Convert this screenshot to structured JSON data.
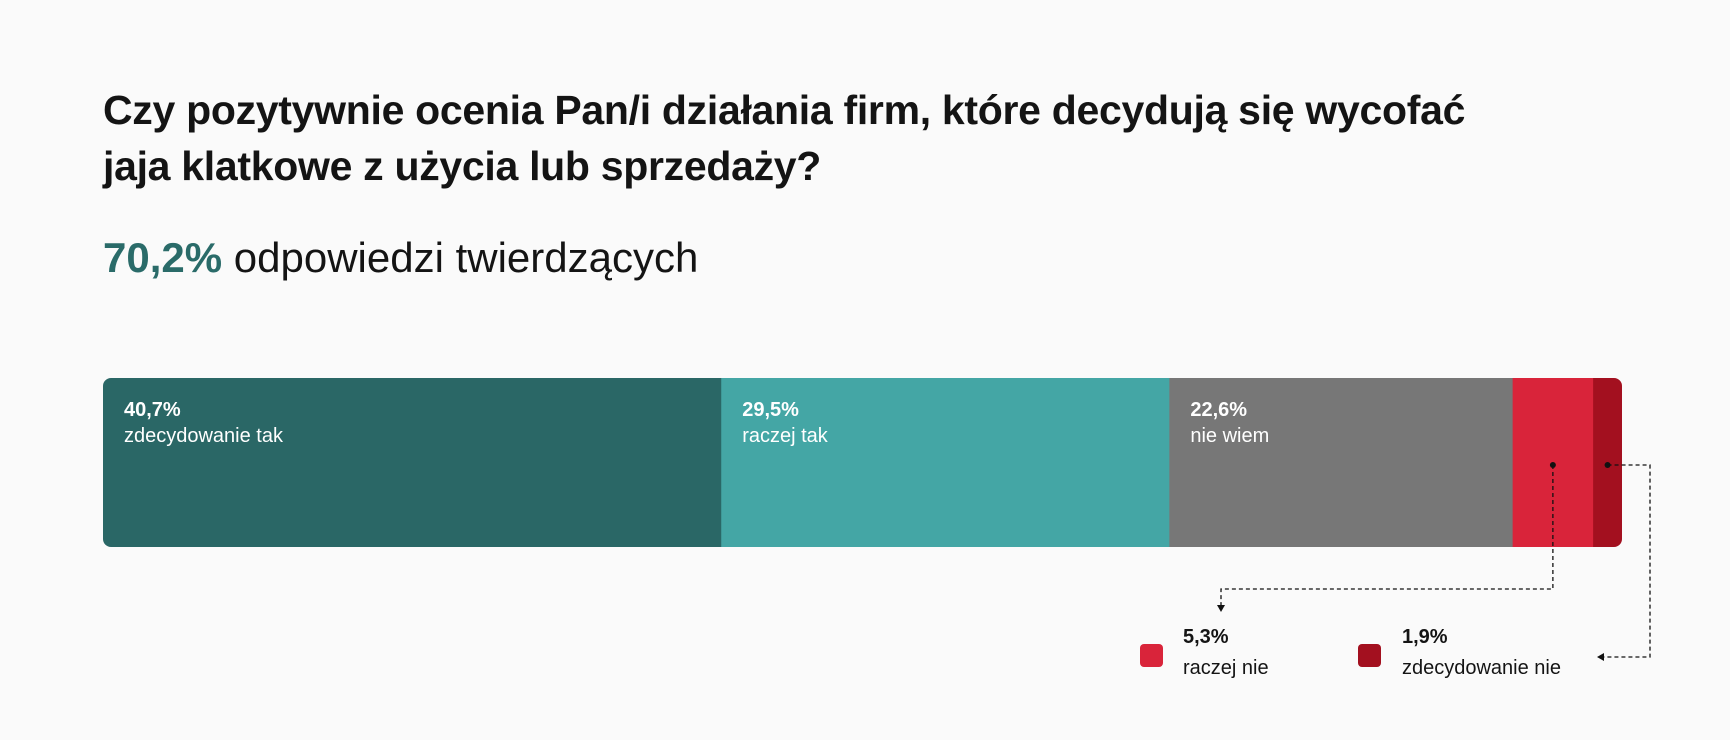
{
  "chart_data": {
    "type": "bar",
    "orientation": "horizontal-stacked",
    "title": "Czy pozytywnie ocenia Pan/i działania firm, które decydują się wycofać jaja klatkowe z użycia lub sprzedaży?",
    "title_lines": [
      "Czy pozytywnie ocenia Pan/i działania firm, które decydują się wycofać",
      "jaja klatkowe z użycia lub sprzedaży?"
    ],
    "subtitle": {
      "value": "70,2%",
      "text": "odpowiedzi twierdzących"
    },
    "series": [
      {
        "name": "zdecydowanie tak",
        "value": 40.7,
        "label": "40,7%",
        "color": "#2a6766",
        "label_position": "inside"
      },
      {
        "name": "raczej tak",
        "value": 29.5,
        "label": "29,5%",
        "color": "#44a6a5",
        "label_position": "inside"
      },
      {
        "name": "nie wiem",
        "value": 22.6,
        "label": "22,6%",
        "color": "#777777",
        "label_position": "inside"
      },
      {
        "name": "raczej nie",
        "value": 5.3,
        "label": "5,3%",
        "color": "#d9243a",
        "label_position": "legend"
      },
      {
        "name": "zdecydowanie nie",
        "value": 1.9,
        "label": "1,9%",
        "color": "#a3101f",
        "label_position": "legend"
      }
    ],
    "total": 100,
    "grid": false,
    "legend_position": "bottom-right"
  }
}
